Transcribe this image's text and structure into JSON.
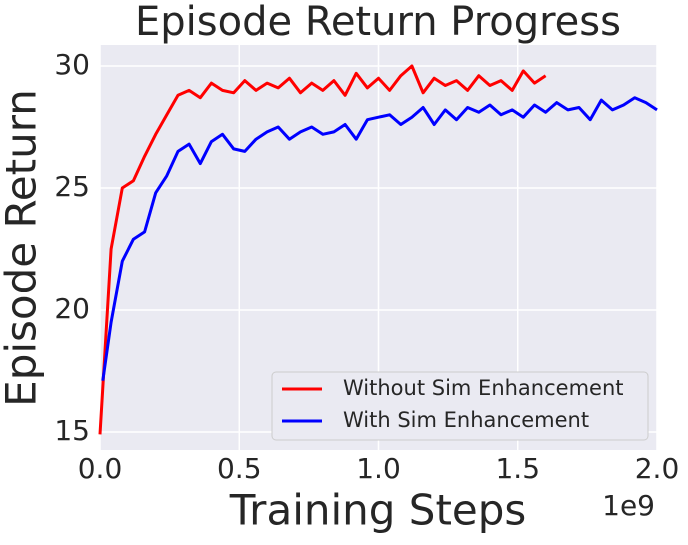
{
  "chart_data": {
    "type": "line",
    "title": "Episode Return Progress",
    "xlabel": "Training Steps",
    "ylabel": "Episode Return",
    "x_offset_label": "1e9",
    "xlim": [
      0,
      2.0
    ],
    "ylim": [
      14.26,
      30.86
    ],
    "xticks": [
      {
        "value": 0,
        "label": "0.0"
      },
      {
        "value": 0.5,
        "label": "0.5"
      },
      {
        "value": 1.0,
        "label": "1.0"
      },
      {
        "value": 1.5,
        "label": "1.5"
      },
      {
        "value": 2.0,
        "label": "2.0"
      }
    ],
    "yticks": [
      15,
      20,
      25,
      30
    ],
    "grid": true,
    "legend": "lower right",
    "series": [
      {
        "name": "Without Sim Enhancement",
        "color": "#ff0000",
        "x": [
          0,
          0.04,
          0.08,
          0.12,
          0.16,
          0.2,
          0.24,
          0.28,
          0.32,
          0.36,
          0.4,
          0.44,
          0.48,
          0.52,
          0.56,
          0.6,
          0.64,
          0.68,
          0.72,
          0.76,
          0.8,
          0.84,
          0.88,
          0.92,
          0.96,
          1.0,
          1.04,
          1.08,
          1.12,
          1.16,
          1.2,
          1.24,
          1.28,
          1.32,
          1.36,
          1.4,
          1.44,
          1.48,
          1.52,
          1.56,
          1.6
        ],
        "values": [
          14.9,
          22.5,
          25.0,
          25.3,
          26.3,
          27.2,
          28.0,
          28.8,
          29.0,
          28.7,
          29.3,
          29.0,
          28.9,
          29.4,
          29.0,
          29.3,
          29.1,
          29.5,
          28.9,
          29.3,
          29.0,
          29.4,
          28.8,
          29.7,
          29.1,
          29.5,
          29.0,
          29.6,
          30.0,
          28.9,
          29.5,
          29.2,
          29.4,
          29.0,
          29.6,
          29.2,
          29.4,
          29.0,
          29.8,
          29.3,
          29.6
        ]
      },
      {
        "name": "With Sim Enhancement",
        "color": "#0000ff",
        "x": [
          0.01,
          0.04,
          0.08,
          0.12,
          0.16,
          0.2,
          0.24,
          0.28,
          0.32,
          0.36,
          0.4,
          0.44,
          0.48,
          0.52,
          0.56,
          0.6,
          0.64,
          0.68,
          0.72,
          0.76,
          0.8,
          0.84,
          0.88,
          0.92,
          0.96,
          1.0,
          1.04,
          1.08,
          1.12,
          1.16,
          1.2,
          1.24,
          1.28,
          1.32,
          1.36,
          1.4,
          1.44,
          1.48,
          1.52,
          1.56,
          1.6,
          1.64,
          1.68,
          1.72,
          1.76,
          1.8,
          1.84,
          1.88,
          1.92,
          1.96,
          2.0
        ],
        "values": [
          17.1,
          19.5,
          22.0,
          22.9,
          23.2,
          24.8,
          25.5,
          26.5,
          26.8,
          26.0,
          26.9,
          27.2,
          26.6,
          26.5,
          27.0,
          27.3,
          27.5,
          27.0,
          27.3,
          27.5,
          27.2,
          27.3,
          27.6,
          27.0,
          27.8,
          27.9,
          28.0,
          27.6,
          27.9,
          28.3,
          27.6,
          28.2,
          27.8,
          28.3,
          28.1,
          28.4,
          28.0,
          28.2,
          27.9,
          28.4,
          28.1,
          28.5,
          28.2,
          28.3,
          27.8,
          28.6,
          28.2,
          28.4,
          28.7,
          28.5,
          28.2
        ]
      }
    ]
  }
}
